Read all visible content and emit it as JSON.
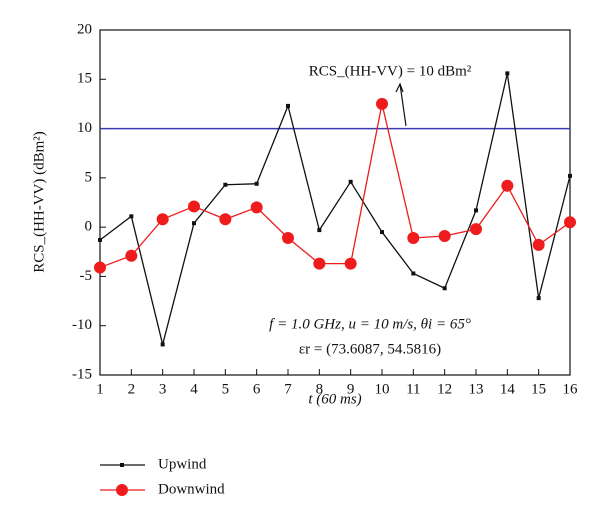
{
  "chart_data": {
    "type": "line",
    "x_label": "t (60 ms)",
    "y_label": "RCS_(HH-VV) (dBm²)",
    "x": [
      1,
      2,
      3,
      4,
      5,
      6,
      7,
      8,
      9,
      10,
      11,
      12,
      13,
      14,
      15,
      16
    ],
    "series": [
      {
        "name": "Upwind",
        "color": "#111111",
        "marker": "square",
        "values": [
          -1.3,
          1.1,
          -11.9,
          0.4,
          4.3,
          4.4,
          12.3,
          -0.3,
          4.6,
          -0.5,
          -4.7,
          -6.2,
          1.7,
          15.6,
          -7.2,
          5.2
        ]
      },
      {
        "name": "Downwind",
        "color": "#ee1c1c",
        "marker": "circle",
        "values": [
          -4.1,
          -2.9,
          0.8,
          2.1,
          0.8,
          2.0,
          -1.1,
          -3.7,
          -3.7,
          12.5,
          -1.1,
          -0.9,
          -0.2,
          4.2,
          -1.8,
          0.5
        ]
      }
    ],
    "reference_line": {
      "value": 10,
      "color": "#3b3bb0"
    },
    "annotations": [
      "RCS_(HH-VV) = 10 dBm²",
      "f = 1.0 GHz, u = 10 m/s, θi = 65°",
      "εr = (73.6087, 54.5816)"
    ],
    "xlim": [
      1,
      16
    ],
    "xticks": [
      1,
      2,
      3,
      4,
      5,
      6,
      7,
      8,
      9,
      10,
      11,
      12,
      13,
      14,
      15,
      16
    ],
    "ylim": [
      -15,
      20
    ],
    "yticks": [
      -15,
      -10,
      -5,
      0,
      5,
      10,
      15,
      20
    ],
    "legend": "bottom-left"
  }
}
